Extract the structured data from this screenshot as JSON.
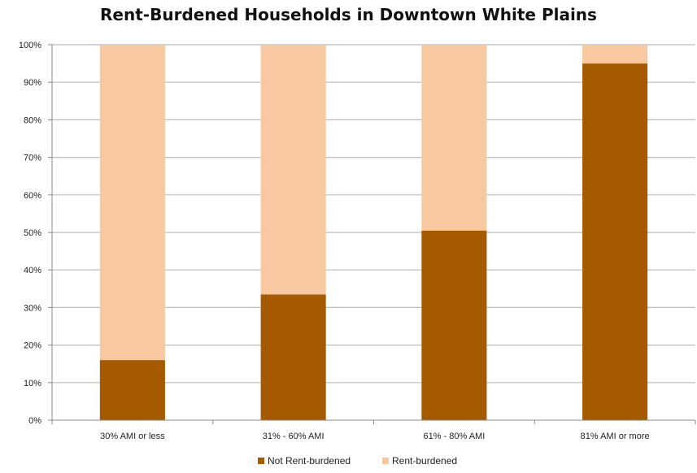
{
  "chart_data": {
    "type": "bar",
    "stacked": true,
    "title": "Rent-Burdened Households in Downtown White Plains",
    "categories": [
      "30% AMI or less",
      "31% - 60% AMI",
      "61% - 80% AMI",
      "81% AMI or more"
    ],
    "series": [
      {
        "name": "Not Rent-burdened",
        "values": [
          16,
          33.5,
          50.5,
          95
        ],
        "color": "#A65A00"
      },
      {
        "name": "Rent-burdened",
        "values": [
          84,
          66.5,
          49.5,
          5
        ],
        "color": "#F8C9A0"
      }
    ],
    "ylim": [
      0,
      100
    ],
    "yticks": [
      "0%",
      "10%",
      "20%",
      "30%",
      "40%",
      "50%",
      "60%",
      "70%",
      "80%",
      "90%",
      "100%"
    ],
    "grid": true,
    "legend_position": "bottom"
  }
}
